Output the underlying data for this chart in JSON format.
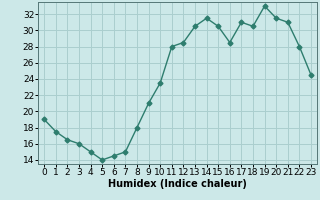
{
  "x": [
    0,
    1,
    2,
    3,
    4,
    5,
    6,
    7,
    8,
    9,
    10,
    11,
    12,
    13,
    14,
    15,
    16,
    17,
    18,
    19,
    20,
    21,
    22,
    23
  ],
  "y": [
    19,
    17.5,
    16.5,
    16,
    15,
    14,
    14.5,
    15,
    18,
    21,
    23.5,
    28,
    28.5,
    30.5,
    31.5,
    30.5,
    28.5,
    31,
    30.5,
    33,
    31.5,
    31,
    28,
    24.5
  ],
  "xlabel": "Humidex (Indice chaleur)",
  "line_color": "#2e7d6e",
  "marker": "D",
  "marker_size": 2.5,
  "bg_color": "#cce8e8",
  "grid_color": "#aacece",
  "ylim": [
    13.5,
    33.5
  ],
  "xlim": [
    -0.5,
    23.5
  ],
  "yticks": [
    14,
    16,
    18,
    20,
    22,
    24,
    26,
    28,
    30,
    32
  ],
  "xticks": [
    0,
    1,
    2,
    3,
    4,
    5,
    6,
    7,
    8,
    9,
    10,
    11,
    12,
    13,
    14,
    15,
    16,
    17,
    18,
    19,
    20,
    21,
    22,
    23
  ],
  "linewidth": 1.0,
  "xlabel_fontsize": 7,
  "tick_fontsize": 6.5
}
